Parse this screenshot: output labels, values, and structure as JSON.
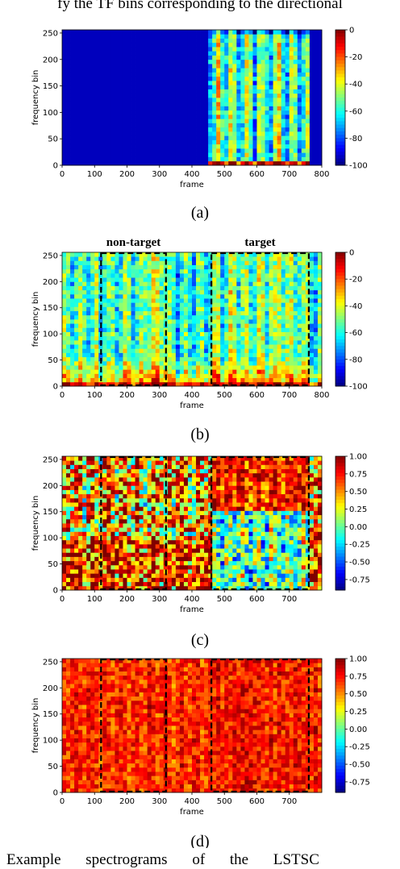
{
  "page": {
    "top_text": "fy the TF bins corresponding to the directional",
    "bottom_text": "Example spectrograms of the LSTSC"
  },
  "chart_data": [
    {
      "type": "heatmap",
      "caption": "(a)",
      "xlabel": "frame",
      "ylabel": "frequency bin",
      "xlim": [
        0,
        800
      ],
      "ylim": [
        0,
        256
      ],
      "xticks": [
        "0",
        "100",
        "200",
        "300",
        "400",
        "500",
        "600",
        "700",
        "800"
      ],
      "yticks": [
        "0",
        "50",
        "100",
        "150",
        "200",
        "250"
      ],
      "colorbar_ticks": [
        "0",
        "-20",
        "-40",
        "-60",
        "-80",
        "-100"
      ],
      "colorbar_range": [
        -100,
        0
      ],
      "colormap": "jet",
      "annotations": []
    },
    {
      "type": "heatmap",
      "caption": "(b)",
      "xlabel": "frame",
      "ylabel": "frequency bin",
      "xlim": [
        0,
        800
      ],
      "ylim": [
        0,
        256
      ],
      "xticks": [
        "0",
        "100",
        "200",
        "300",
        "400",
        "500",
        "600",
        "700",
        "800"
      ],
      "yticks": [
        "0",
        "50",
        "100",
        "150",
        "200",
        "250"
      ],
      "colorbar_ticks": [
        "0",
        "-20",
        "-40",
        "-60",
        "-80",
        "-100"
      ],
      "colorbar_range": [
        -100,
        0
      ],
      "colormap": "jet",
      "annotations": [
        {
          "label": "non-target",
          "x_range": [
            120,
            320
          ]
        },
        {
          "label": "target",
          "x_range": [
            460,
            760
          ]
        }
      ]
    },
    {
      "type": "heatmap",
      "caption": "(c)",
      "xlabel": "frame",
      "ylabel": "frequency bin",
      "xlim": [
        0,
        800
      ],
      "ylim": [
        0,
        256
      ],
      "xticks": [
        "0",
        "100",
        "200",
        "300",
        "400",
        "500",
        "600",
        "700"
      ],
      "yticks": [
        "0",
        "50",
        "100",
        "150",
        "200",
        "250"
      ],
      "colorbar_ticks": [
        "1.00",
        "0.75",
        "0.50",
        "0.25",
        "0.00",
        "-0.25",
        "-0.50",
        "-0.75"
      ],
      "colorbar_range": [
        -0.9,
        1.0
      ],
      "colormap": "jet",
      "annotations": [
        {
          "label": "",
          "x_range": [
            120,
            320
          ]
        },
        {
          "label": "",
          "x_range": [
            460,
            760
          ]
        }
      ]
    },
    {
      "type": "heatmap",
      "caption": "(d)",
      "xlabel": "frame",
      "ylabel": "frequency bin",
      "xlim": [
        0,
        800
      ],
      "ylim": [
        0,
        256
      ],
      "xticks": [
        "0",
        "100",
        "200",
        "300",
        "400",
        "500",
        "600",
        "700"
      ],
      "yticks": [
        "0",
        "50",
        "100",
        "150",
        "200",
        "250"
      ],
      "colorbar_ticks": [
        "1.00",
        "0.75",
        "0.50",
        "0.25",
        "0.00",
        "-0.25",
        "-0.50",
        "-0.75"
      ],
      "colorbar_range": [
        -0.9,
        1.0
      ],
      "colormap": "jet",
      "annotations": [
        {
          "label": "",
          "x_range": [
            120,
            320
          ]
        },
        {
          "label": "",
          "x_range": [
            460,
            760
          ]
        }
      ]
    }
  ]
}
